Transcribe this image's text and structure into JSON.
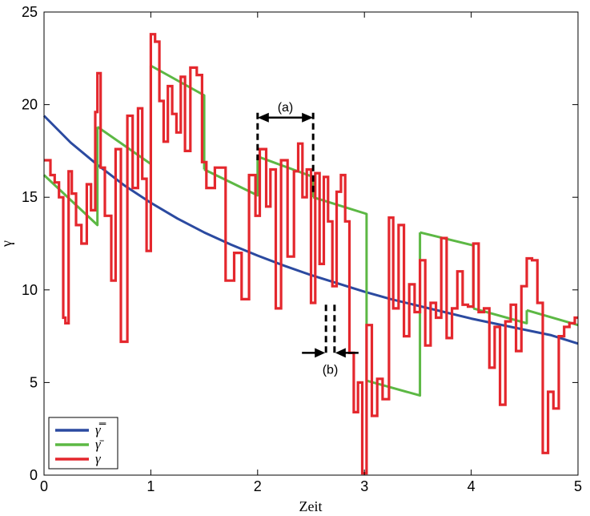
{
  "chart_data": {
    "type": "line",
    "xlabel": "Zeit",
    "ylabel": "γ",
    "xlim": [
      0,
      5
    ],
    "ylim": [
      0,
      25
    ],
    "xticks": [
      "0",
      "1",
      "2",
      "3",
      "4",
      "5"
    ],
    "yticks": [
      "0",
      "5",
      "10",
      "15",
      "20",
      "25"
    ],
    "grid": false,
    "legend_position": "bottom-left",
    "annotations": [
      {
        "label": "(a)",
        "x_start": 2.0,
        "x_end": 2.52,
        "y": 19.3
      },
      {
        "label": "(b)",
        "x_start": 2.64,
        "x_end": 2.72,
        "y": 6.6
      }
    ],
    "series": [
      {
        "name": "γ̿",
        "color": "#2b4aa0",
        "style": "smooth",
        "x": [
          0,
          0.25,
          0.5,
          0.75,
          1.0,
          1.25,
          1.5,
          1.75,
          2.0,
          2.25,
          2.5,
          2.75,
          3.0,
          3.25,
          3.5,
          3.75,
          4.0,
          4.25,
          4.5,
          4.75,
          5.0
        ],
        "y": [
          19.4,
          17.95,
          16.75,
          15.65,
          14.7,
          13.85,
          13.1,
          12.45,
          11.85,
          11.3,
          10.8,
          10.35,
          9.9,
          9.5,
          9.15,
          8.8,
          8.45,
          8.15,
          7.85,
          7.55,
          7.1
        ]
      },
      {
        "name": "γ̄",
        "color": "#5cb844",
        "style": "piecewise",
        "segments": [
          {
            "x": [
              0.0,
              0.5
            ],
            "y": [
              16.2,
              13.5
            ]
          },
          {
            "x": [
              0.5,
              1.0
            ],
            "y": [
              18.8,
              16.8
            ]
          },
          {
            "x": [
              1.0,
              1.5
            ],
            "y": [
              22.1,
              20.5
            ]
          },
          {
            "x": [
              1.5,
              2.0
            ],
            "y": [
              16.5,
              15.1
            ]
          },
          {
            "x": [
              2.0,
              2.52
            ],
            "y": [
              17.2,
              16.1
            ]
          },
          {
            "x": [
              2.52,
              3.02
            ],
            "y": [
              15.0,
              14.1
            ]
          },
          {
            "x": [
              3.02,
              3.52
            ],
            "y": [
              5.1,
              4.3
            ]
          },
          {
            "x": [
              3.52,
              4.02
            ],
            "y": [
              13.1,
              12.4
            ]
          },
          {
            "x": [
              4.02,
              4.52
            ],
            "y": [
              9.0,
              8.2
            ]
          },
          {
            "x": [
              4.52,
              5.0
            ],
            "y": [
              8.9,
              8.1
            ]
          }
        ]
      },
      {
        "name": "γ",
        "color": "#e4272d",
        "style": "step",
        "x": [
          0.0,
          0.06,
          0.1,
          0.14,
          0.18,
          0.2,
          0.23,
          0.26,
          0.3,
          0.35,
          0.4,
          0.44,
          0.48,
          0.5,
          0.53,
          0.57,
          0.63,
          0.67,
          0.72,
          0.78,
          0.83,
          0.88,
          0.92,
          0.96,
          1.0,
          1.04,
          1.08,
          1.12,
          1.16,
          1.2,
          1.24,
          1.28,
          1.32,
          1.37,
          1.43,
          1.48,
          1.52,
          1.6,
          1.7,
          1.78,
          1.85,
          1.92,
          1.98,
          2.02,
          2.08,
          2.12,
          2.17,
          2.22,
          2.28,
          2.34,
          2.38,
          2.42,
          2.46,
          2.5,
          2.54,
          2.58,
          2.62,
          2.66,
          2.7,
          2.74,
          2.78,
          2.82,
          2.86,
          2.9,
          2.94,
          2.98,
          3.02,
          3.07,
          3.12,
          3.17,
          3.23,
          3.27,
          3.32,
          3.37,
          3.42,
          3.47,
          3.52,
          3.57,
          3.62,
          3.67,
          3.72,
          3.77,
          3.82,
          3.87,
          3.92,
          3.97,
          4.02,
          4.07,
          4.12,
          4.17,
          4.22,
          4.27,
          4.32,
          4.37,
          4.42,
          4.47,
          4.52,
          4.57,
          4.62,
          4.67,
          4.72,
          4.77,
          4.82,
          4.87,
          4.92,
          4.97,
          5.0
        ],
        "y": [
          17.0,
          16.2,
          15.8,
          15.0,
          8.5,
          8.2,
          16.4,
          15.2,
          13.5,
          12.5,
          15.7,
          14.3,
          19.6,
          21.7,
          16.6,
          14.0,
          10.5,
          17.6,
          7.2,
          19.4,
          15.5,
          19.8,
          16.0,
          12.1,
          23.8,
          23.4,
          20.2,
          18.0,
          21.0,
          19.5,
          18.5,
          21.5,
          17.5,
          22.0,
          21.6,
          16.9,
          15.5,
          16.6,
          10.5,
          12.0,
          9.5,
          16.2,
          14.0,
          17.6,
          14.5,
          16.5,
          9.0,
          17.0,
          11.8,
          16.4,
          17.9,
          15.0,
          16.5,
          9.3,
          16.3,
          11.4,
          16.1,
          13.7,
          10.2,
          15.3,
          16.2,
          13.7,
          6.6,
          3.4,
          5.0,
          0.1,
          8.1,
          3.2,
          5.2,
          4.1,
          13.9,
          9.0,
          13.5,
          7.5,
          10.3,
          8.8,
          11.6,
          7.0,
          9.3,
          8.5,
          12.8,
          7.4,
          9.0,
          11.0,
          9.2,
          9.1,
          12.5,
          8.8,
          9.0,
          5.8,
          8.0,
          3.8,
          8.3,
          9.2,
          6.7,
          10.2,
          11.7,
          11.6,
          9.3,
          1.2,
          4.5,
          3.6,
          7.5,
          8.0,
          8.2,
          8.5,
          8.5
        ]
      }
    ]
  }
}
